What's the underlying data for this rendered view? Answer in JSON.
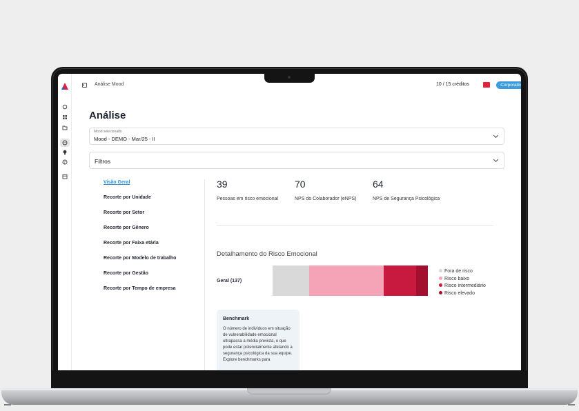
{
  "topbar": {
    "title": "Análise Mood",
    "credits": "10 / 15 créditos",
    "plan": "Corporativo"
  },
  "page": {
    "title": "Análise"
  },
  "mood_select": {
    "label": "Mood selecionado",
    "value": "Mood - DEMO - Mar/25 - II"
  },
  "filters": {
    "label": "Filtros"
  },
  "nav": {
    "items": [
      "Visão Geral",
      "Recorte por Unidade",
      "Recorte por Setor",
      "Recorte por Gênero",
      "Recorte por Faixa etária",
      "Recorte por Modelo de trabalho",
      "Recorte por Gestão",
      "Recorte por Tempo de empresa"
    ]
  },
  "metrics": [
    {
      "value": "39",
      "label": "Pessoas em risco emocional"
    },
    {
      "value": "70",
      "label": "NPS do Colaborador (eNPS)"
    },
    {
      "value": "64",
      "label": "NPS de Segurança Psicológica"
    }
  ],
  "risk": {
    "title": "Detalhamento do Risco Emocional",
    "row_label": "Geral (137)",
    "categories": [
      "Fora de risco",
      "Risco baixo",
      "Risco intermediário",
      "Risco elevado"
    ],
    "colors": [
      "#d9d9d9",
      "#f5a3b7",
      "#c8193f",
      "#a3102f"
    ],
    "shares": [
      0.235,
      0.48,
      0.21,
      0.075
    ]
  },
  "benchmark": {
    "title": "Benchmark",
    "text": "O número de indivíduos em situação de vulnerabilidade emocional ultrapassa a média prevista, o que pode estar potencialmente afetando a segurança psicológica da sua equipe. Explore benchmarks para"
  },
  "icons": {
    "rail": [
      "circle-icon",
      "grid-icon",
      "folder-icon",
      "mood-face-icon",
      "bulb-icon",
      "palette-icon",
      "calendar-icon"
    ],
    "topbar": "sidebar-toggle-icon",
    "ticket": "ticket-icon"
  }
}
